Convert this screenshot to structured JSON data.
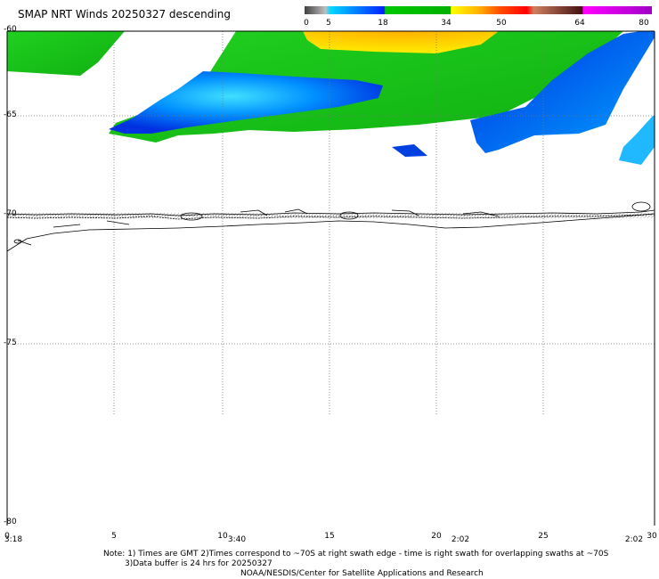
{
  "title": "SMAP NRT Winds  20250327 descending",
  "colorbar": {
    "tick_labels": [
      "0",
      "5",
      "18",
      "34",
      "50",
      "64",
      "80"
    ],
    "colors": [
      "#555555",
      "#9a9a9a",
      "#00b4ff",
      "#00c800",
      "#ffe600",
      "#ff0000",
      "#8c5028",
      "#c800c8"
    ]
  },
  "lat_labels": [
    "-60",
    "-65",
    "-70",
    "-75",
    "-80"
  ],
  "lon_labels": [
    "0",
    "5",
    "10",
    "15",
    "20",
    "25",
    "30"
  ],
  "time_labels": [
    "3:18",
    "3:40",
    "2:02",
    "2:02"
  ],
  "notes": {
    "line1": "Note: 1) Times are GMT 2)Times correspond to ~70S at right swath edge - time is right swath for overlapping swaths at ~70S",
    "line2": "3)Data buffer is 24 hrs for 20250327",
    "line3": "NOAA/NESDIS/Center for Satellite Applications and Research"
  }
}
